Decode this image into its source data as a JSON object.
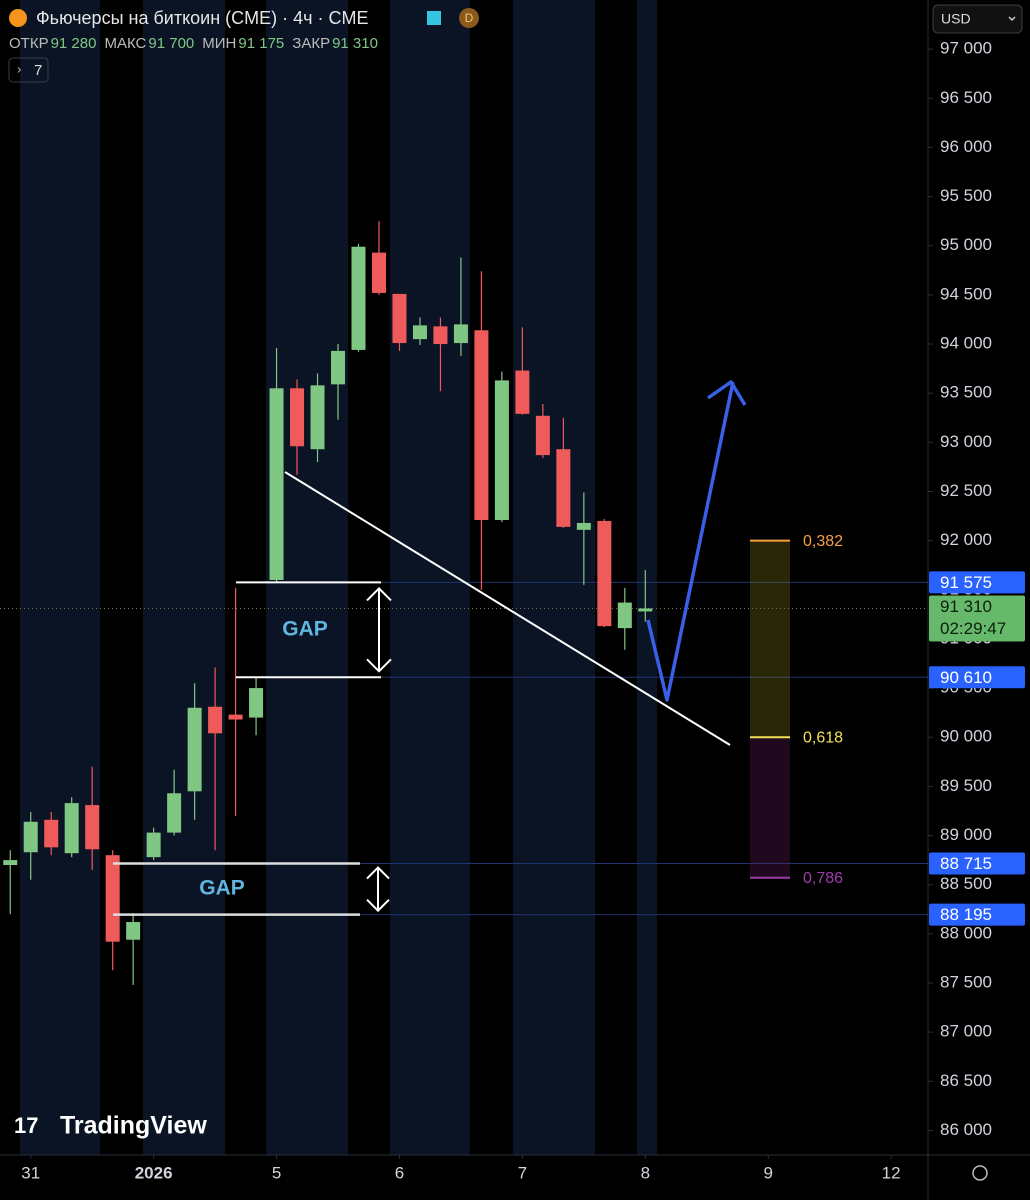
{
  "header": {
    "title": "Фьючерсы на биткоин (CME) · 4ч · CME",
    "badge": "D",
    "currency": "USD",
    "indicator": "7",
    "ohlc": [
      {
        "label": "ОТКР",
        "value": "91 280"
      },
      {
        "label": "МАКС",
        "value": "91 700"
      },
      {
        "label": "МИН",
        "value": "91 175"
      },
      {
        "label": "ЗАКР",
        "value": "91 310"
      }
    ]
  },
  "chart_data": {
    "type": "candlestick",
    "open": [
      88700,
      88830,
      89160,
      88820,
      89310,
      88800,
      87940,
      88780,
      89030,
      89450,
      90310,
      90230,
      90200,
      91600,
      93550,
      92930,
      93590,
      93940,
      94930,
      94510,
      94050,
      94180,
      94010,
      94140,
      92210,
      93730,
      93270,
      92930,
      92110,
      92200,
      91110,
      91280
    ],
    "high": [
      88850,
      89240,
      89240,
      89390,
      89700,
      88850,
      88210,
      89080,
      89670,
      90550,
      90710,
      91520,
      90610,
      93960,
      93640,
      93700,
      94000,
      95020,
      95250,
      94510,
      94270,
      94270,
      94880,
      94740,
      93720,
      94170,
      93390,
      93250,
      92490,
      92220,
      91520,
      91700
    ],
    "low": [
      88200,
      88550,
      88800,
      88780,
      88650,
      87630,
      87480,
      88750,
      89000,
      89160,
      88850,
      89200,
      90020,
      91580,
      92670,
      92800,
      93230,
      93920,
      94500,
      93930,
      93990,
      93520,
      93880,
      91500,
      92190,
      93280,
      92840,
      92130,
      91550,
      91120,
      90890,
      91175
    ],
    "close": [
      88750,
      89140,
      88880,
      89330,
      88860,
      87920,
      88120,
      89030,
      89430,
      90300,
      90040,
      90180,
      90500,
      93550,
      92960,
      93580,
      93930,
      94990,
      94520,
      94010,
      94190,
      94000,
      94200,
      92210,
      93630,
      93290,
      92870,
      92140,
      92180,
      91130,
      91370,
      91310
    ],
    "up_color": "#81c784",
    "down_color": "#ef5b5b",
    "xlim": [
      -0.5,
      44.8
    ],
    "xticks": [
      {
        "value": 1,
        "label": "31"
      },
      {
        "value": 7,
        "label": "2026"
      },
      {
        "value": 13,
        "label": "5"
      },
      {
        "value": 19,
        "label": "6"
      },
      {
        "value": 25,
        "label": "7"
      },
      {
        "value": 31,
        "label": "8"
      },
      {
        "value": 37,
        "label": "9"
      },
      {
        "value": 43,
        "label": "12"
      }
    ],
    "ylim": [
      85750,
      97500
    ],
    "yticks": [
      {
        "value": 86000,
        "label": "86 000"
      },
      {
        "value": 86500,
        "label": "86 500"
      },
      {
        "value": 87000,
        "label": "87 000"
      },
      {
        "value": 87500,
        "label": "87 500"
      },
      {
        "value": 88000,
        "label": "88 000"
      },
      {
        "value": 88500,
        "label": "88 500"
      },
      {
        "value": 89000,
        "label": "89 000"
      },
      {
        "value": 89500,
        "label": "89 500"
      },
      {
        "value": 90000,
        "label": "90 000"
      },
      {
        "value": 90500,
        "label": "90 500"
      },
      {
        "value": 91000,
        "label": "91 000"
      },
      {
        "value": 91500,
        "label": "91 500"
      },
      {
        "value": 92000,
        "label": "92 000"
      },
      {
        "value": 92500,
        "label": "92 500"
      },
      {
        "value": 93000,
        "label": "93 000"
      },
      {
        "value": 93500,
        "label": "93 500"
      },
      {
        "value": 94000,
        "label": "94 000"
      },
      {
        "value": 94500,
        "label": "94 500"
      },
      {
        "value": 95000,
        "label": "95 000"
      },
      {
        "value": 95500,
        "label": "95 500"
      },
      {
        "value": 96000,
        "label": "96 000"
      },
      {
        "value": 96500,
        "label": "96 500"
      },
      {
        "value": 97000,
        "label": "97 000"
      }
    ],
    "price_labels": [
      {
        "value": 91575,
        "label": "91 575"
      },
      {
        "value": 90610,
        "label": "90 610"
      },
      {
        "value": 88715,
        "label": "88 715"
      },
      {
        "value": 88195,
        "label": "88 195"
      }
    ],
    "current_price": {
      "value": 91310,
      "label": "91 310",
      "countdown": "02:29:47"
    },
    "annotations": [
      "GAP",
      "GAP"
    ],
    "fib_levels": [
      {
        "label": "0,382",
        "price": 92000,
        "color": "#f5a142"
      },
      {
        "label": "0,618",
        "price": 90000,
        "color": "#f2e250"
      },
      {
        "label": "0,786",
        "price": 88570,
        "color": "#9c3fa8"
      }
    ],
    "watermark": "TradingView"
  }
}
